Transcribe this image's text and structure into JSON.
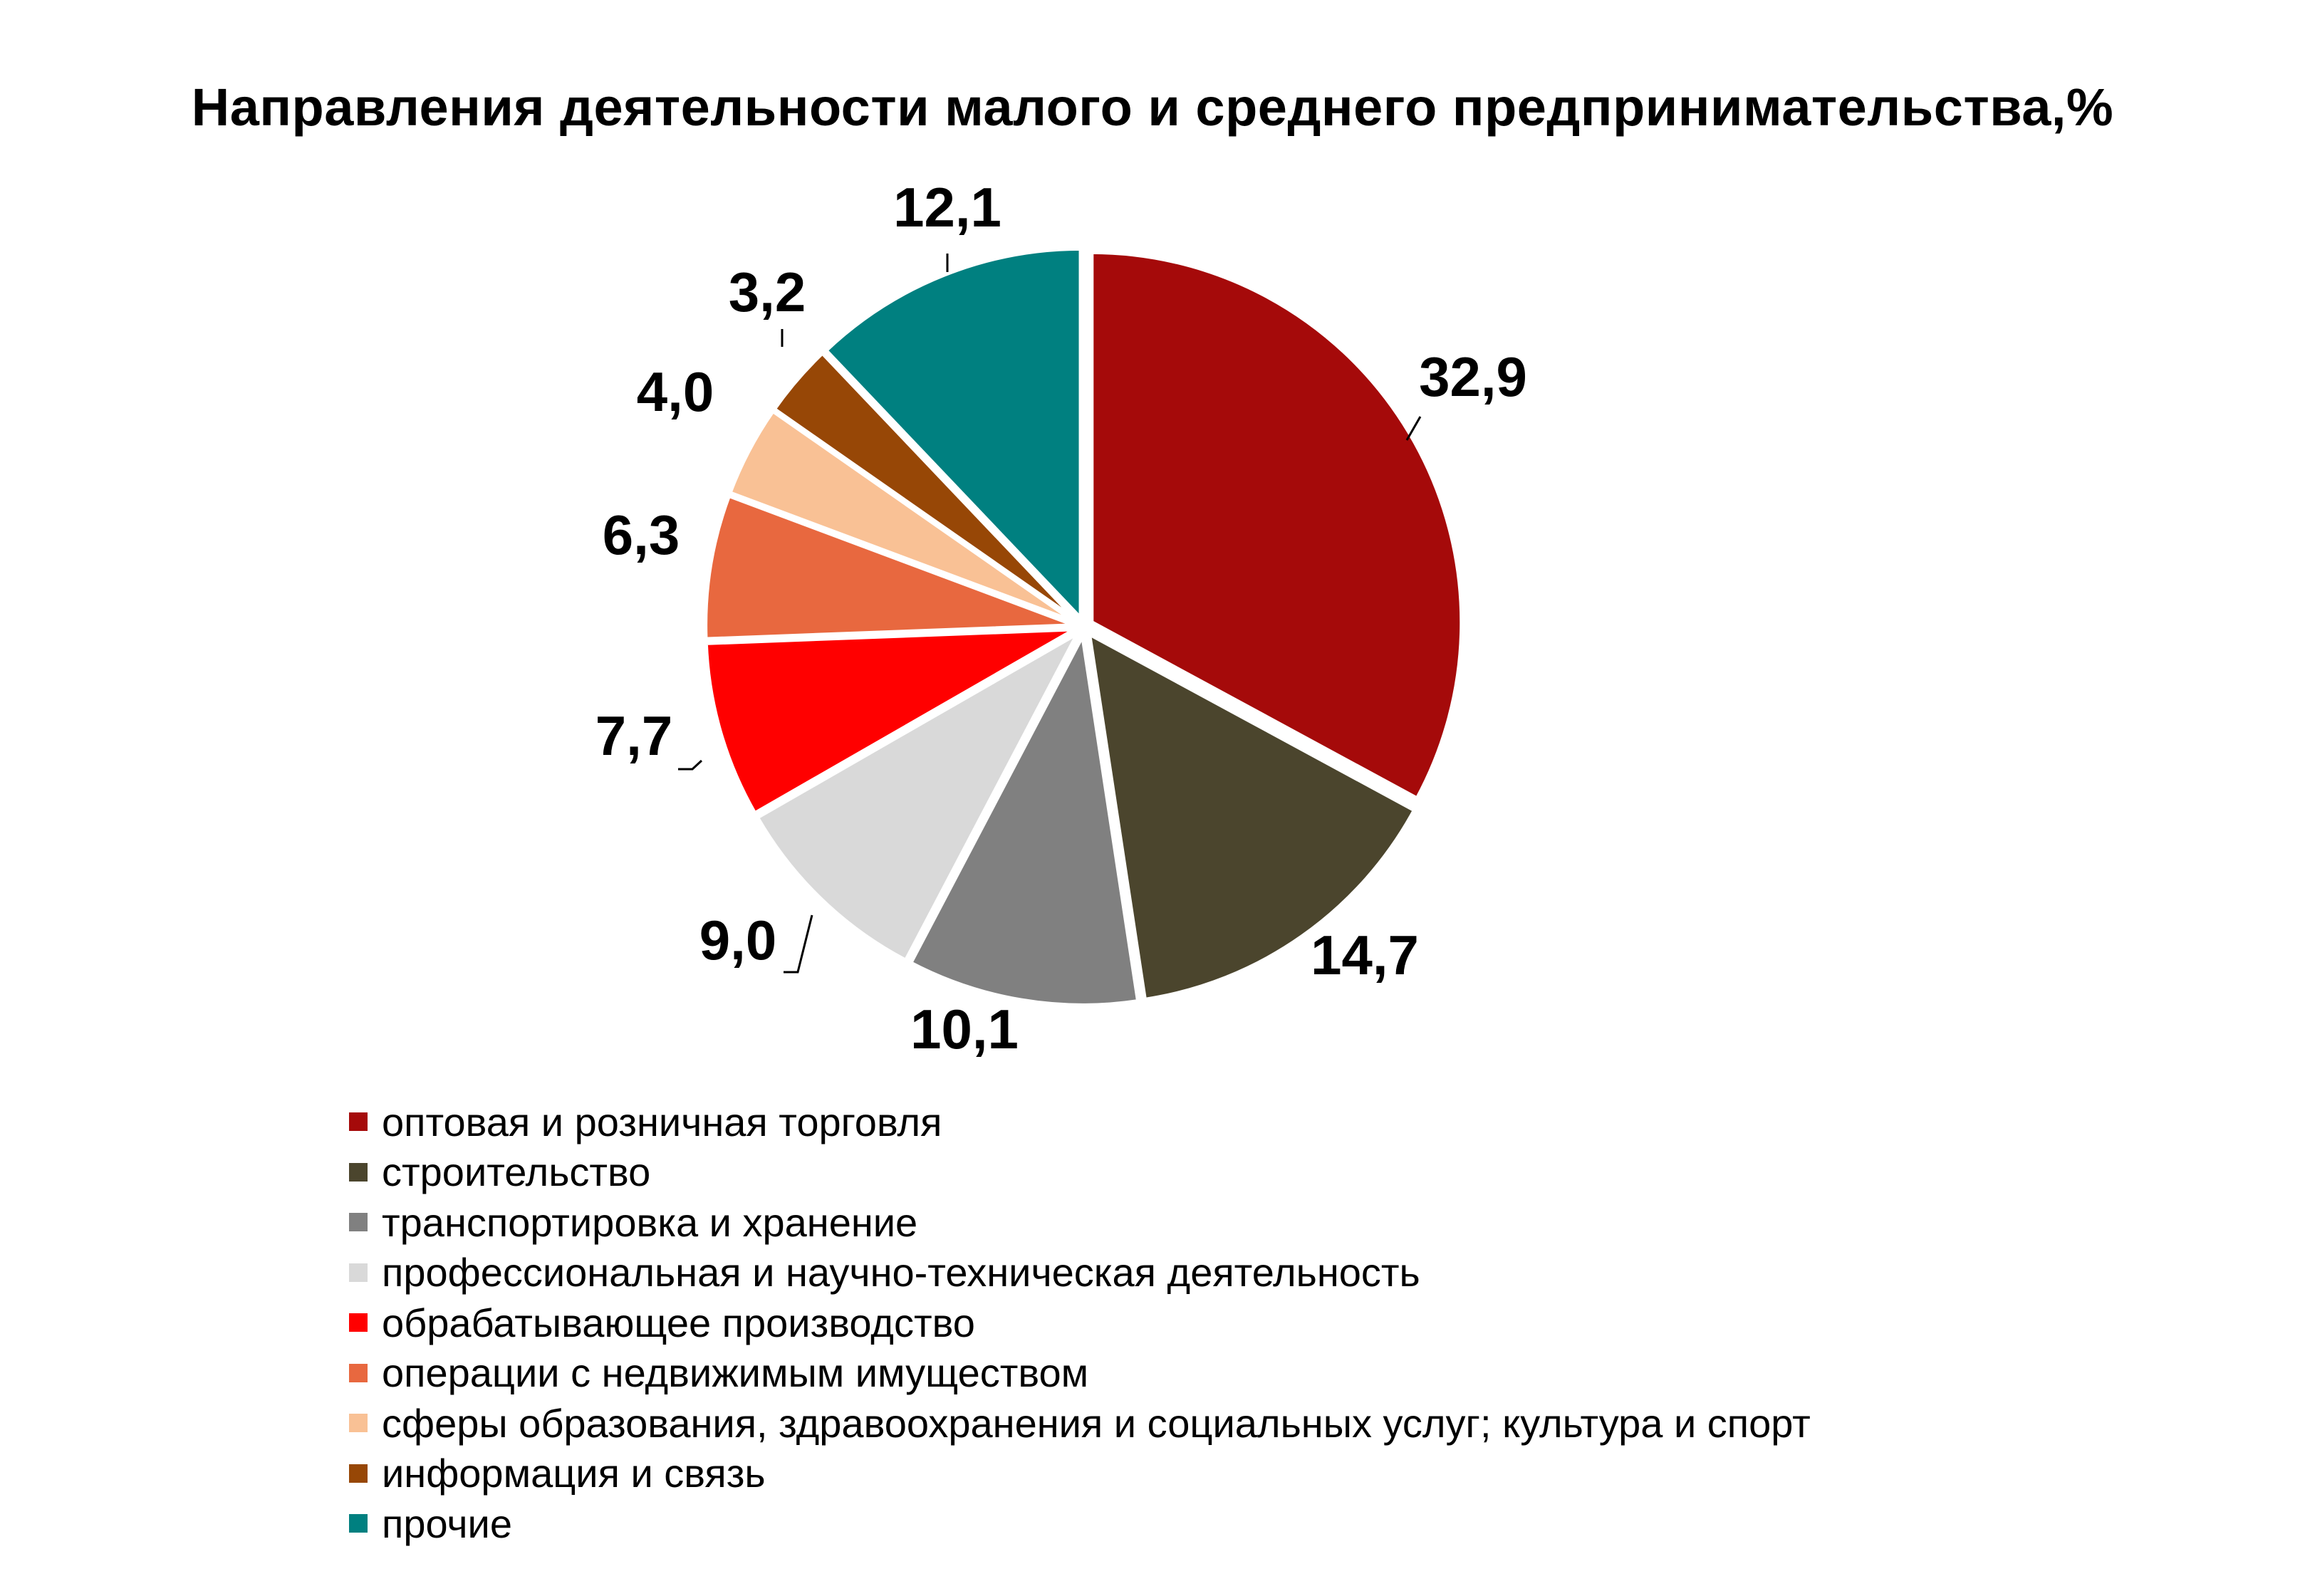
{
  "chart_data": {
    "type": "pie",
    "title": "Направления деятельности малого и среднего предпринимательства,%",
    "slices": [
      {
        "label": "оптовая и розничная торговля",
        "value": 32.9,
        "value_text": "32,9",
        "color": "#A50A0A"
      },
      {
        "label": "строительство",
        "value": 14.7,
        "value_text": "14,7",
        "color": "#4B452D"
      },
      {
        "label": "транспортировка и хранение",
        "value": 10.1,
        "value_text": "10,1",
        "color": "#808080"
      },
      {
        "label": "профессиональная и научно-техническая деятельность",
        "value": 9.0,
        "value_text": "9,0",
        "color": "#D9D9D9"
      },
      {
        "label": "обрабатывающее производство",
        "value": 7.7,
        "value_text": "7,7",
        "color": "#FF0000"
      },
      {
        "label": "операции с недвижимым имуществом",
        "value": 6.3,
        "value_text": "6,3",
        "color": "#E8683F"
      },
      {
        "label": "сферы образования, здравоохранения и социальных услуг; культура и спорт",
        "value": 4.0,
        "value_text": "4,0",
        "color": "#F9C195"
      },
      {
        "label": "информация и связь",
        "value": 3.2,
        "value_text": "3,2",
        "color": "#974706"
      },
      {
        "label": "прочие",
        "value": 12.1,
        "value_text": "12,1",
        "color": "#008080"
      }
    ],
    "start_angle": "12 o'clock",
    "direction": "clockwise",
    "exploded": true,
    "legend_position": "bottom-left"
  }
}
